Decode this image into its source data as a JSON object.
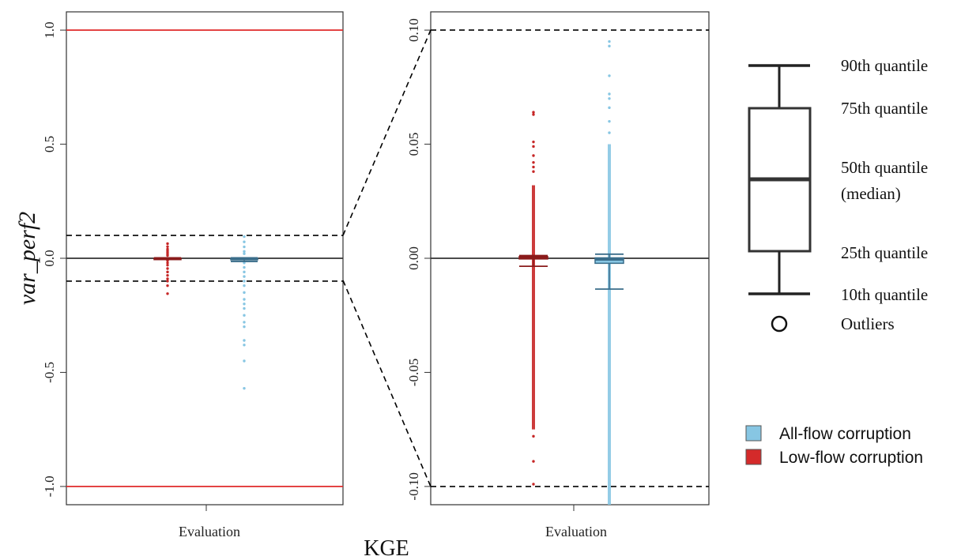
{
  "figure": {
    "y_axis_label": "var_perf2",
    "x_axis_label": "KGE",
    "legend_items": [
      {
        "label": "All-flow corruption",
        "color": "#87c6e3"
      },
      {
        "label": "Low-flow corruption",
        "color": "#d42a2a"
      }
    ],
    "boxplot_key": {
      "q90": "90th quantile",
      "q75": "75th quantile",
      "q50_line1": "50th quantile",
      "q50_line2": "(median)",
      "q25": "25th quantile",
      "q10": "10th quantile",
      "outliers": "Outliers"
    }
  },
  "chart_data": [
    {
      "type": "boxplot",
      "panel": "full",
      "category": "Evaluation",
      "ylim": [
        -1.08,
        1.08
      ],
      "yticks": [
        -1.0,
        -0.5,
        0.0,
        0.5,
        1.0
      ],
      "ytick_labels": [
        "-1.0",
        "-0.5",
        "0.0",
        "0.5",
        "1.0"
      ],
      "reference_lines": [
        {
          "y": 1.0,
          "color": "#e02b2b",
          "style": "solid"
        },
        {
          "y": -1.0,
          "color": "#e02b2b",
          "style": "solid"
        },
        {
          "y": 0.0,
          "color": "#333333",
          "style": "solid"
        },
        {
          "y": 0.1,
          "color": "#000000",
          "style": "dashed"
        },
        {
          "y": -0.1,
          "color": "#000000",
          "style": "dashed"
        }
      ],
      "series": [
        {
          "color": "#c62626",
          "stats": {
            "q10": -0.003,
            "q25": -0.001,
            "median": 0.0,
            "q75": 0.001,
            "q90": 0.002
          },
          "outliers": [
            0.064,
            0.051,
            0.04,
            0.032,
            0.025,
            0.018,
            0.012,
            -0.01,
            -0.02,
            -0.03,
            -0.045,
            -0.06,
            -0.075,
            -0.09,
            -0.1,
            -0.12,
            -0.155
          ]
        },
        {
          "color": "#87c6e3",
          "stats": {
            "q10": -0.014,
            "q25": -0.002,
            "median": 0.0,
            "q75": 0.0,
            "q90": 0.002
          },
          "outliers": [
            0.095,
            0.072,
            0.05,
            0.03,
            0.02,
            -0.02,
            -0.04,
            -0.06,
            -0.08,
            -0.1,
            -0.12,
            -0.15,
            -0.18,
            -0.2,
            -0.22,
            -0.25,
            -0.28,
            -0.3,
            -0.36,
            -0.38,
            -0.45,
            -0.57
          ]
        }
      ]
    },
    {
      "type": "boxplot",
      "panel": "zoom",
      "category": "Evaluation",
      "ylim": [
        -0.108,
        0.108
      ],
      "yticks": [
        -0.1,
        -0.05,
        0.0,
        0.05,
        0.1
      ],
      "ytick_labels": [
        "-0.10",
        "-0.05",
        "0.00",
        "0.05",
        "0.10"
      ],
      "reference_lines": [
        {
          "y": 0.0,
          "color": "#333333",
          "style": "solid"
        },
        {
          "y": 0.1,
          "color": "#000000",
          "style": "dashed"
        },
        {
          "y": -0.1,
          "color": "#000000",
          "style": "dashed"
        }
      ],
      "series": [
        {
          "color": "#c62626",
          "stats": {
            "q10": -0.0035,
            "q25": -0.0003,
            "median": 0.0003,
            "q75": 0.0008,
            "q90": 0.0012
          },
          "dense_range": [
            -0.075,
            0.032
          ],
          "outliers": [
            0.064,
            0.063,
            0.051,
            0.049,
            0.045,
            0.042,
            0.04,
            0.038,
            -0.078,
            -0.089,
            -0.099
          ]
        },
        {
          "color": "#87c6e3",
          "stats": {
            "q10": -0.0135,
            "q25": -0.0022,
            "median": -0.0005,
            "q75": 0.0002,
            "q90": 0.0018
          },
          "dense_range": [
            -0.108,
            0.05
          ],
          "outliers": [
            0.095,
            0.093,
            0.08,
            0.072,
            0.07,
            0.066,
            0.06,
            0.055
          ]
        }
      ]
    }
  ]
}
